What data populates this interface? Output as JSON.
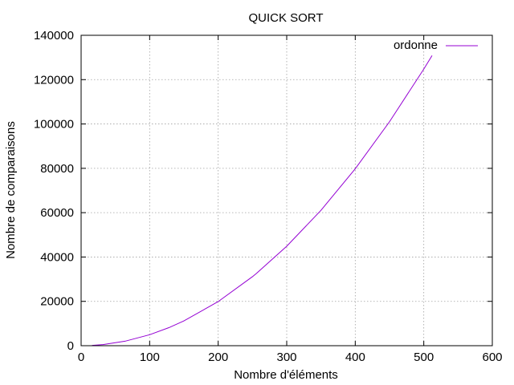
{
  "chart_data": {
    "type": "line",
    "title": "QUICK SORT",
    "xlabel": "Nombre d'éléments",
    "ylabel": "Nombre de comparaisons",
    "xlim": [
      0,
      600
    ],
    "ylim": [
      0,
      140000
    ],
    "xticks": [
      0,
      100,
      200,
      300,
      400,
      500,
      600
    ],
    "yticks": [
      0,
      20000,
      40000,
      60000,
      80000,
      100000,
      120000,
      140000
    ],
    "grid": true,
    "legend_position": "top-right",
    "series": [
      {
        "name": "ordonne",
        "color": "#9400d3",
        "x": [
          16,
          32,
          64,
          100,
          128,
          150,
          200,
          250,
          256,
          300,
          350,
          400,
          450,
          500,
          512
        ],
        "y": [
          120,
          500,
          2016,
          4950,
          8128,
          11175,
          19900,
          31125,
          32640,
          44850,
          61075,
          79800,
          101025,
          124750,
          130816
        ]
      }
    ]
  }
}
